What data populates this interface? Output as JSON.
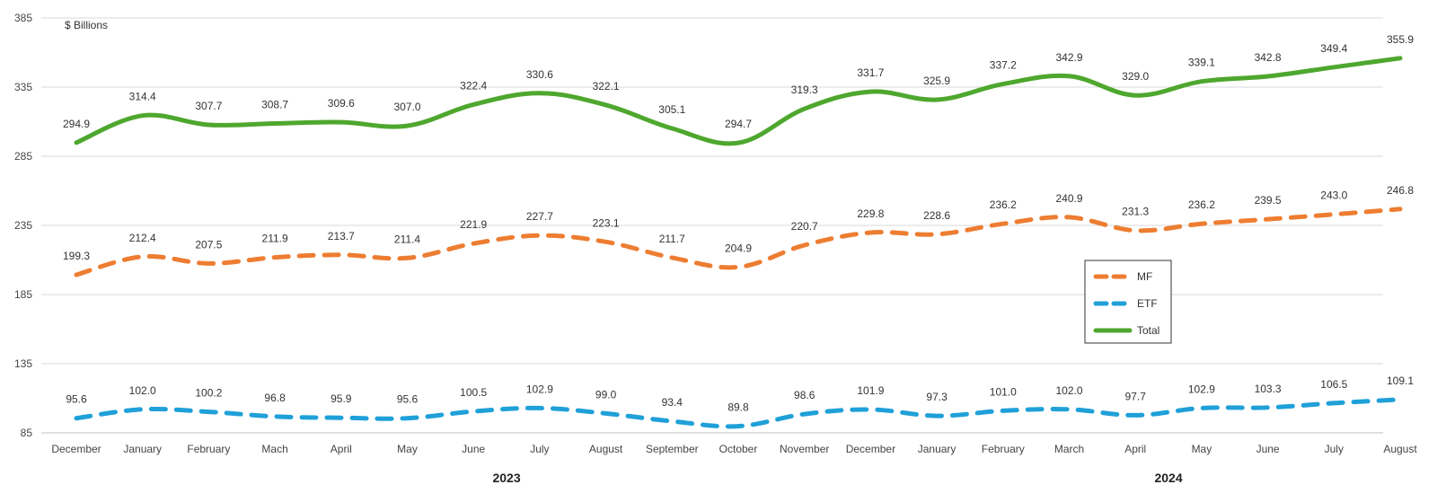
{
  "chart_data": {
    "type": "line",
    "unit_label": "$ Billions",
    "categories": [
      "December",
      "January",
      "February",
      "Mach",
      "April",
      "May",
      "June",
      "July",
      "August",
      "September",
      "October",
      "November",
      "December",
      "January",
      "February",
      "March",
      "April",
      "May",
      "June",
      "July",
      "August"
    ],
    "year_groups": [
      {
        "label": "2023",
        "start_index": 1,
        "end_index": 12
      },
      {
        "label": "2024",
        "start_index": 13,
        "end_index": 20
      }
    ],
    "ylim": [
      85,
      385
    ],
    "yticks": [
      85,
      135,
      185,
      235,
      285,
      335,
      385
    ],
    "grid": true,
    "legend_position": "center-right",
    "series": [
      {
        "name": "MF",
        "color": "#ED7D31",
        "style": "dashed",
        "values": [
          199.3,
          212.4,
          207.5,
          211.9,
          213.7,
          211.4,
          221.9,
          227.7,
          223.1,
          211.7,
          204.9,
          220.7,
          229.8,
          228.6,
          236.2,
          240.9,
          231.3,
          236.2,
          239.5,
          243.0,
          246.8
        ]
      },
      {
        "name": "ETF",
        "color": "#1FA0D8",
        "style": "dashed",
        "values": [
          95.6,
          102.0,
          100.2,
          96.8,
          95.9,
          95.6,
          100.5,
          102.9,
          99.0,
          93.4,
          89.8,
          98.6,
          101.9,
          97.3,
          101.0,
          102.0,
          97.7,
          102.9,
          103.3,
          106.5,
          109.1
        ]
      },
      {
        "name": "Total",
        "color": "#4EA72E",
        "style": "solid",
        "values": [
          294.9,
          314.4,
          307.7,
          308.7,
          309.6,
          307.0,
          322.4,
          330.6,
          322.1,
          305.1,
          294.7,
          319.3,
          331.7,
          325.9,
          337.2,
          342.9,
          329.0,
          339.1,
          342.8,
          349.4,
          355.9
        ]
      }
    ]
  }
}
